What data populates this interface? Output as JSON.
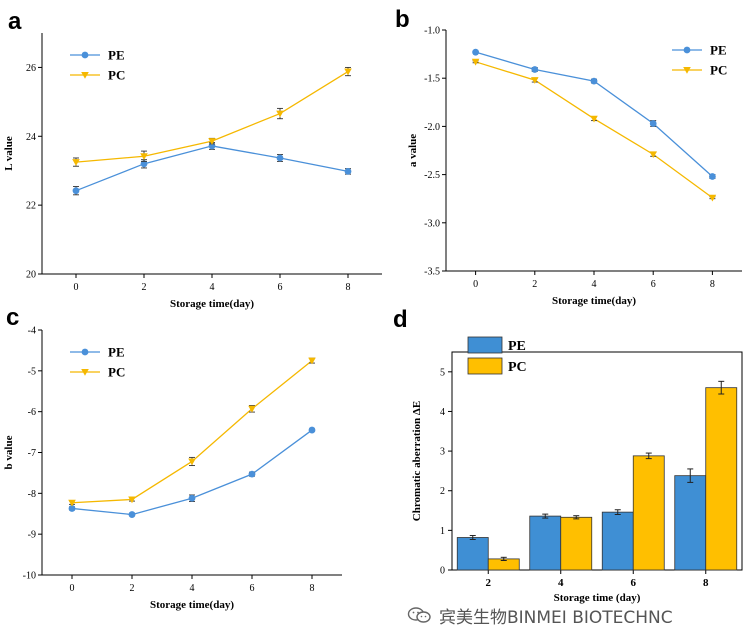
{
  "colors": {
    "PE": "#4a90d9",
    "PC": "#f5b800",
    "PE_bar": "#3f8fd4",
    "PC_bar": "#ffbf00"
  },
  "icons": {
    "watermark": "wechat-icon"
  },
  "watermark": "宾美生物BINMEI BIOTECHNC",
  "chart_data": [
    {
      "panel": "a",
      "type": "line",
      "xlabel": "Storage time(day)",
      "ylabel": "L value",
      "x": [
        0,
        2,
        4,
        6,
        8
      ],
      "xlim": [
        -1,
        9
      ],
      "ylim": [
        20,
        27
      ],
      "xticks": [
        0,
        2,
        4,
        6,
        8
      ],
      "yticks": [
        20,
        22,
        24,
        26
      ],
      "legend": "top-left",
      "series": [
        {
          "name": "PE",
          "values": [
            22.42,
            23.2,
            23.72,
            23.37,
            22.98
          ],
          "errors": [
            0.12,
            0.12,
            0.1,
            0.1,
            0.08
          ]
        },
        {
          "name": "PC",
          "values": [
            23.25,
            23.42,
            23.86,
            24.66,
            25.88
          ],
          "errors": [
            0.12,
            0.15,
            0.08,
            0.15,
            0.12
          ]
        }
      ]
    },
    {
      "panel": "b",
      "type": "line",
      "xlabel": "Storage time(day)",
      "ylabel": "a value",
      "x": [
        0,
        2,
        4,
        6,
        8
      ],
      "xlim": [
        -1,
        9
      ],
      "ylim": [
        -3.5,
        -1.0
      ],
      "xticks": [
        0,
        2,
        4,
        6,
        8
      ],
      "yticks": [
        -3.5,
        -3.0,
        -2.5,
        -2.0,
        -1.5,
        -1.0
      ],
      "ytick_labels": [
        "-3.5",
        "-3.0",
        "-2.5",
        "-2.0",
        "-1.5",
        "-1.0"
      ],
      "legend": "top-right",
      "series": [
        {
          "name": "PE",
          "values": [
            -1.23,
            -1.41,
            -1.53,
            -1.97,
            -2.52
          ],
          "errors": [
            0.01,
            0.02,
            0.02,
            0.03,
            0.02
          ]
        },
        {
          "name": "PC",
          "values": [
            -1.33,
            -1.52,
            -1.92,
            -2.29,
            -2.74
          ],
          "errors": [
            0.01,
            0.02,
            0.02,
            0.02,
            0.01
          ]
        }
      ]
    },
    {
      "panel": "c",
      "type": "line",
      "xlabel": "Storage time(day)",
      "ylabel": "b value",
      "x": [
        0,
        2,
        4,
        6,
        8
      ],
      "xlim": [
        -1,
        9
      ],
      "ylim": [
        -10,
        -4
      ],
      "xticks": [
        0,
        2,
        4,
        6,
        8
      ],
      "yticks": [
        -10,
        -9,
        -8,
        -7,
        -6,
        -5,
        -4
      ],
      "legend": "top-left",
      "series": [
        {
          "name": "PE",
          "values": [
            -8.37,
            -8.52,
            -8.12,
            -7.53,
            -6.45
          ],
          "errors": [
            0.04,
            0.03,
            0.08,
            0.05,
            0.03
          ]
        },
        {
          "name": "PC",
          "values": [
            -8.23,
            -8.15,
            -7.22,
            -5.93,
            -4.75
          ],
          "errors": [
            0.04,
            0.04,
            0.1,
            0.08,
            0.06
          ]
        }
      ]
    },
    {
      "panel": "d",
      "type": "bar",
      "xlabel": "Storage time (day)",
      "ylabel": "Chromatic aberration ΔE",
      "categories": [
        "2",
        "4",
        "6",
        "8"
      ],
      "ylim": [
        0,
        5.5
      ],
      "yticks": [
        0,
        1,
        2,
        3,
        4,
        5
      ],
      "legend": "top-left",
      "series": [
        {
          "name": "PE",
          "values": [
            0.82,
            1.36,
            1.46,
            2.38
          ],
          "errors": [
            0.05,
            0.05,
            0.06,
            0.17
          ]
        },
        {
          "name": "PC",
          "values": [
            0.28,
            1.33,
            2.88,
            4.6
          ],
          "errors": [
            0.04,
            0.04,
            0.07,
            0.16
          ]
        }
      ]
    }
  ]
}
